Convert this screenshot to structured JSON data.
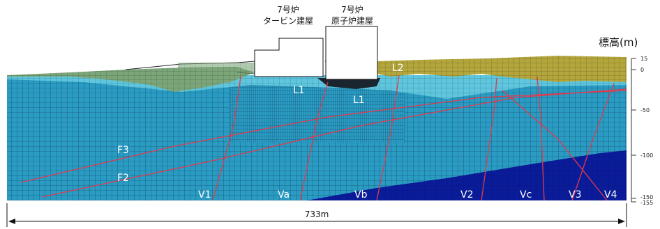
{
  "buildings": {
    "turbine": {
      "line1": "7号炉",
      "line2": "タービン建屋"
    },
    "reactor": {
      "line1": "7号炉",
      "line2": "原子炉建屋"
    }
  },
  "axis": {
    "label": "標高(m)",
    "ticks": [
      "15",
      "0",
      "-50",
      "-100",
      "-150",
      "-155"
    ]
  },
  "labels": {
    "L1a": "L1",
    "L1b": "L1",
    "L2": "L2",
    "F2": "F2",
    "F3": "F3",
    "V1": "V1",
    "Va": "Va",
    "Vb": "Vb",
    "V2": "V2",
    "Vc": "Vc",
    "V3": "V3",
    "V4": "V4"
  },
  "dimension": {
    "width_label": "733m"
  },
  "colors": {
    "mesh_main": "#2a9cc4",
    "mesh_light": "#56c4dc",
    "deep_layer": "#0a1c9a",
    "surface_layer": "#b3a63c",
    "fault_red": "#e23a4c",
    "grid_line": "#123a52"
  }
}
